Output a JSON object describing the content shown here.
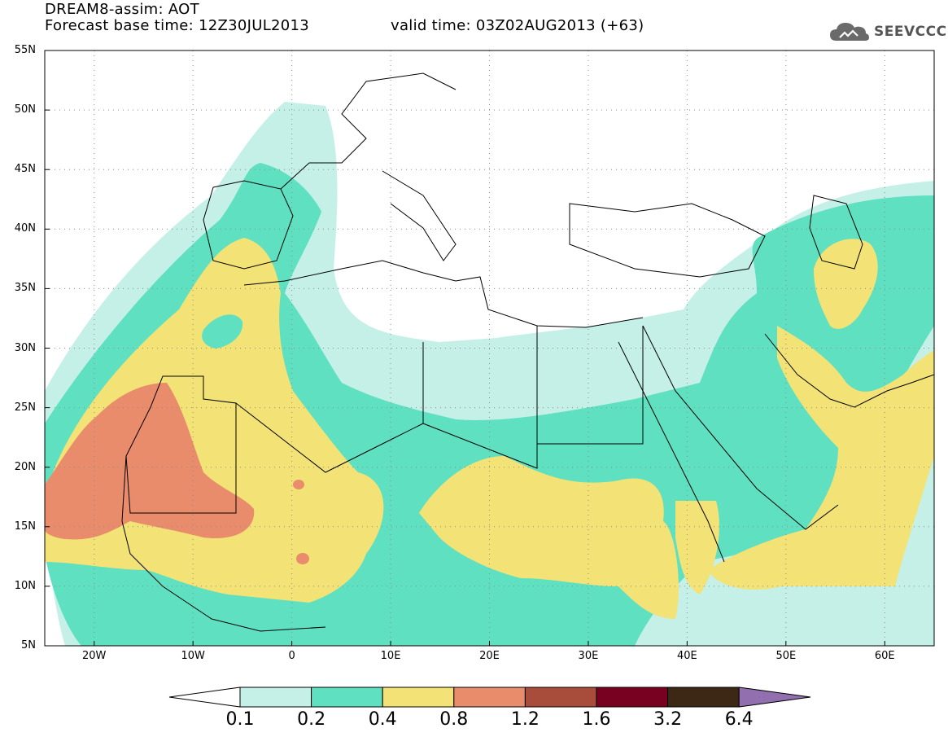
{
  "header": {
    "title_line1": "DREAM8-assim: AOT",
    "title_line2": "Forecast base time: 12Z30JUL2013",
    "valid_time": "valid time: 03Z02AUG2013 (+63)",
    "logo_text": "SEEVCCC",
    "logo_icon": "cloud-icon"
  },
  "map": {
    "lat_labels": [
      "55N",
      "50N",
      "45N",
      "40N",
      "35N",
      "30N",
      "25N",
      "20N",
      "15N",
      "10N",
      "5N"
    ],
    "lon_labels": [
      "20W",
      "10W",
      "0",
      "10E",
      "20E",
      "30E",
      "40E",
      "50E",
      "60E"
    ],
    "lat_range": [
      5,
      55
    ],
    "lon_range": [
      -25,
      65
    ],
    "grid": "dotted",
    "colors": {
      "c01": "#c4f0e8",
      "c02": "#5fe0c0",
      "c04": "#f3e276",
      "c08": "#e88c6c",
      "c12": "#a84c3c",
      "c16": "#780020",
      "c32": "#3c2814",
      "c64": "#9270b0",
      "border": "#000000"
    }
  },
  "colorbar": {
    "labels": [
      "0.1",
      "0.2",
      "0.4",
      "0.8",
      "1.2",
      "1.6",
      "3.2",
      "6.4"
    ],
    "colors": [
      "#c4f0e8",
      "#5fe0c0",
      "#f3e276",
      "#e88c6c",
      "#a84c3c",
      "#780020",
      "#3c2814"
    ],
    "under_color": "#ffffff",
    "over_color": "#9270b0"
  }
}
